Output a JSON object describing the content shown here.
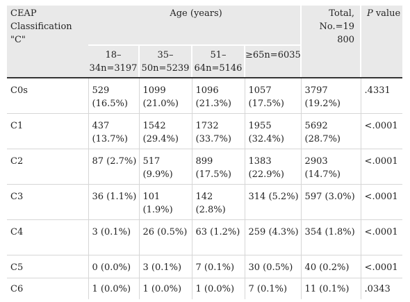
{
  "table": {
    "header": {
      "classification": "CEAP Classification \"C\"",
      "age_group": "Age (years)",
      "total": "Total, No.=19 800",
      "p_label_italic": "P",
      "p_label_rest": " value",
      "age_columns": [
        "18–34n=3197",
        "35–50n=5239",
        "51–64n=5146",
        "≥65n=6035"
      ]
    },
    "rows": [
      {
        "class": "C0s",
        "a1": "529 (16.5%)",
        "a2": "1099 (21.0%)",
        "a3": "1096 (21.3%)",
        "a4": "1057 (17.5%)",
        "total": "3797 (19.2%)",
        "p": ".4331"
      },
      {
        "class": "C1",
        "a1": "437 (13.7%)",
        "a2": "1542 (29.4%)",
        "a3": "1732 (33.7%)",
        "a4": "1955 (32.4%)",
        "total": "5692 (28.7%)",
        "p": "<.0001"
      },
      {
        "class": "C2",
        "a1": "87 (2.7%)",
        "a2": "517 (9.9%)",
        "a3": "899 (17.5%)",
        "a4": "1383 (22.9%)",
        "total": "2903 (14.7%)",
        "p": "<.0001"
      },
      {
        "class": "C3",
        "a1": "36 (1.1%)",
        "a2": "101 (1.9%)",
        "a3": "142 (2.8%)",
        "a4": "314 (5.2%)",
        "total": "597 (3.0%)",
        "p": "<.0001"
      },
      {
        "class": "C4",
        "a1": "3 (0.1%)",
        "a2": "26 (0.5%)",
        "a3": "63 (1.2%)",
        "a4": "259 (4.3%)",
        "total": "354 (1.8%)",
        "p": "<.0001"
      },
      {
        "class": "C5",
        "a1": "0 (0.0%)",
        "a2": "3 (0.1%)",
        "a3": "7 (0.1%)",
        "a4": "30 (0.5%)",
        "total": "40 (0.2%)",
        "p": "<.0001"
      },
      {
        "class": "C6",
        "a1": "1 (0.0%)",
        "a2": "1 (0.0%)",
        "a3": "1 (0.0%)",
        "a4": "7 (0.1%)",
        "total": "11 (0.1%)",
        "p": ".0343"
      }
    ]
  }
}
